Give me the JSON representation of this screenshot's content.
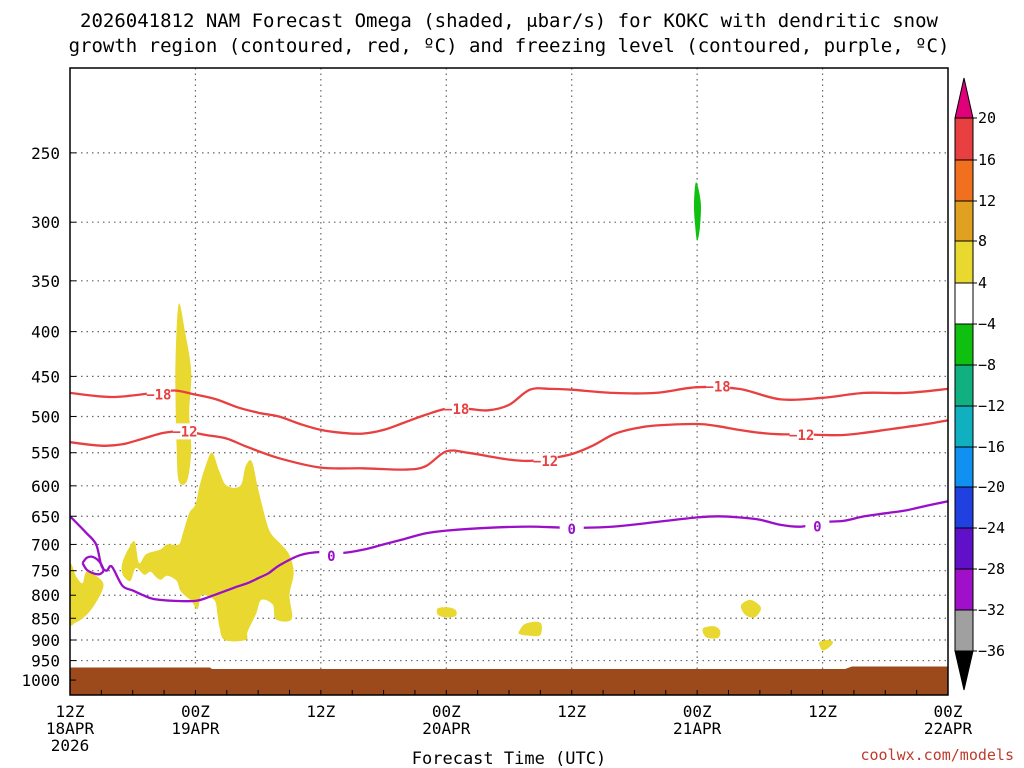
{
  "chart_data": {
    "type": "area",
    "title_line1": "2026041812 NAM Forecast Omega (shaded, μbar/s) for KOKC with dendritic snow",
    "title_line2": "growth region (contoured, red, ºC) and freezing level (contoured, purple, ºC)",
    "xlabel": "Forecast Time (UTC)",
    "credit": "coolwx.com/models",
    "xlim": [
      0,
      84
    ],
    "ylim": [
      200,
      1040
    ],
    "y_scale": "log",
    "y_ticks": [
      250,
      300,
      350,
      400,
      450,
      500,
      550,
      600,
      650,
      700,
      750,
      800,
      850,
      900,
      950,
      1000
    ],
    "x_ticks": [
      {
        "x": 0,
        "line1": "12Z",
        "line2": "18APR",
        "line3": "2026"
      },
      {
        "x": 12,
        "line1": "00Z",
        "line2": "19APR",
        "line3": ""
      },
      {
        "x": 24,
        "line1": "12Z",
        "line2": "",
        "line3": ""
      },
      {
        "x": 36,
        "line1": "00Z",
        "line2": "20APR",
        "line3": ""
      },
      {
        "x": 48,
        "line1": "12Z",
        "line2": "",
        "line3": ""
      },
      {
        "x": 60,
        "line1": "00Z",
        "line2": "21APR",
        "line3": ""
      },
      {
        "x": 72,
        "line1": "12Z",
        "line2": "",
        "line3": ""
      },
      {
        "x": 84,
        "line1": "00Z",
        "line2": "22APR",
        "line3": ""
      }
    ],
    "grid": true,
    "colorbar": {
      "labels": [
        "20",
        "16",
        "12",
        "8",
        "4",
        "−4",
        "−8",
        "−12",
        "−16",
        "−20",
        "−24",
        "−28",
        "−32",
        "−36"
      ],
      "colors": [
        "#e0007a",
        "#e84040",
        "#f07020",
        "#e0a020",
        "#e8d830",
        "#ffffff",
        "#10c010",
        "#10b080",
        "#10b0c0",
        "#1090f0",
        "#2040e0",
        "#6010c8",
        "#a010c8",
        "#a0a0a0",
        "#000000"
      ]
    },
    "series": [
      {
        "name": "−18",
        "kind": "contour",
        "color": "#e84040",
        "label_points": [
          [
            8.5,
            472
          ],
          [
            37,
            490
          ],
          [
            62,
            462
          ]
        ],
        "x": [
          0,
          4,
          8,
          10,
          12,
          14,
          16,
          18,
          20,
          22,
          24,
          26,
          28,
          30,
          32,
          34,
          36,
          38,
          40,
          42,
          44,
          46,
          48,
          52,
          56,
          60,
          64,
          68,
          72,
          76,
          80,
          84
        ],
        "values": [
          470,
          475,
          470,
          467,
          472,
          478,
          488,
          495,
          500,
          510,
          518,
          522,
          523,
          518,
          508,
          498,
          490,
          490,
          492,
          485,
          466,
          465,
          466,
          470,
          470,
          463,
          465,
          478,
          476,
          470,
          470,
          465
        ]
      },
      {
        "name": "−12",
        "kind": "contour",
        "color": "#e84040",
        "label_points": [
          [
            11,
            520
          ],
          [
            45.5,
            562
          ],
          [
            70,
            525
          ]
        ],
        "x": [
          0,
          3,
          5,
          7,
          9,
          11,
          13,
          15,
          17,
          20,
          24,
          28,
          32,
          34,
          36,
          38,
          40,
          42,
          44,
          46,
          48,
          50,
          52,
          54,
          56,
          60,
          62,
          64,
          66,
          68,
          70,
          72,
          74,
          76,
          78,
          80,
          82,
          84
        ],
        "values": [
          535,
          540,
          538,
          530,
          522,
          520,
          525,
          530,
          542,
          558,
          572,
          573,
          575,
          570,
          548,
          550,
          555,
          560,
          562,
          558,
          552,
          540,
          524,
          516,
          512,
          510,
          513,
          518,
          522,
          524,
          524,
          525,
          525,
          522,
          518,
          514,
          510,
          505
        ]
      },
      {
        "name": "0",
        "kind": "contour",
        "color": "#9a10c8",
        "label_points": [
          [
            25,
            722
          ],
          [
            48,
            672
          ],
          [
            71.5,
            668
          ]
        ],
        "x": [
          0,
          1.5,
          2.5,
          3,
          3.5,
          4,
          5,
          6,
          7,
          8,
          10,
          12,
          13,
          14,
          15,
          16,
          17,
          18,
          19,
          20,
          22,
          24,
          26,
          28,
          30,
          32,
          34,
          36,
          40,
          44,
          48,
          52,
          56,
          60,
          62,
          64,
          66,
          68,
          70,
          72,
          74,
          76,
          78,
          80,
          82,
          84
        ],
        "values": [
          650,
          678,
          700,
          740,
          750,
          742,
          780,
          790,
          800,
          808,
          812,
          812,
          806,
          798,
          790,
          782,
          775,
          765,
          755,
          740,
          720,
          714,
          716,
          710,
          700,
          690,
          680,
          675,
          670,
          668,
          670,
          668,
          660,
          652,
          650,
          652,
          656,
          665,
          668,
          660,
          658,
          650,
          645,
          640,
          632,
          625
        ]
      },
      {
        "name": "0 (closed loop)",
        "kind": "contour",
        "color": "#9a10c8",
        "x": [
          1.2,
          1.6,
          2.1,
          2.6,
          3.0,
          3.2,
          2.8,
          2.2,
          1.6,
          1.2
        ],
        "values": [
          735,
          725,
          723,
          728,
          738,
          750,
          757,
          755,
          748,
          735
        ]
      }
    ],
    "shaded_regions": [
      {
        "name": "omega 4-8",
        "color": "#e8d830",
        "points": [
          [
            0,
            740
          ],
          [
            0.6,
            762
          ],
          [
            1.2,
            775
          ],
          [
            1.6,
            752
          ],
          [
            2.8,
            765
          ],
          [
            3.2,
            782
          ],
          [
            2.5,
            815
          ],
          [
            1.6,
            842
          ],
          [
            0.5,
            860
          ],
          [
            0,
            855
          ]
        ]
      },
      {
        "name": "omega 4-8",
        "color": "#e8d830",
        "points": [
          [
            10.4,
            372
          ],
          [
            11.0,
            400
          ],
          [
            11.6,
            445
          ],
          [
            11.4,
            495
          ],
          [
            11.6,
            545
          ],
          [
            11.2,
            592
          ],
          [
            10.4,
            592
          ],
          [
            10.2,
            540
          ],
          [
            10.1,
            480
          ],
          [
            10.1,
            430
          ]
        ]
      },
      {
        "name": "omega 4-8",
        "color": "#e8d830",
        "points": [
          [
            5.0,
            735
          ],
          [
            5.6,
            708
          ],
          [
            6.2,
            695
          ],
          [
            6.6,
            735
          ],
          [
            7.3,
            718
          ],
          [
            8.6,
            710
          ],
          [
            9.3,
            700
          ],
          [
            10.4,
            700
          ],
          [
            10.8,
            680
          ],
          [
            11.4,
            645
          ],
          [
            12.0,
            630
          ],
          [
            12.4,
            600
          ],
          [
            13.0,
            568
          ],
          [
            13.6,
            550
          ],
          [
            14.3,
            578
          ],
          [
            15.0,
            600
          ],
          [
            16.3,
            600
          ],
          [
            16.8,
            570
          ],
          [
            17.4,
            563
          ],
          [
            18.0,
            605
          ],
          [
            18.8,
            660
          ],
          [
            19.3,
            682
          ],
          [
            20.2,
            700
          ],
          [
            21.0,
            720
          ],
          [
            21.4,
            755
          ],
          [
            21.0,
            800
          ],
          [
            21.2,
            852
          ],
          [
            19.7,
            852
          ],
          [
            19.4,
            820
          ],
          [
            18.3,
            810
          ],
          [
            17.8,
            840
          ],
          [
            17.0,
            880
          ],
          [
            16.8,
            900
          ],
          [
            14.8,
            900
          ],
          [
            14.3,
            870
          ],
          [
            14.1,
            840
          ],
          [
            13.8,
            810
          ],
          [
            12.6,
            800
          ],
          [
            12.2,
            830
          ],
          [
            11.6,
            812
          ],
          [
            10.6,
            792
          ],
          [
            10.2,
            770
          ],
          [
            9.3,
            760
          ],
          [
            8.7,
            768
          ],
          [
            8.2,
            762
          ],
          [
            7.7,
            752
          ],
          [
            7.1,
            758
          ],
          [
            6.3,
            745
          ],
          [
            5.8,
            770
          ],
          [
            5.3,
            765
          ],
          [
            5.0,
            755
          ]
        ]
      },
      {
        "name": "omega 4-8",
        "color": "#e8d830",
        "points": [
          [
            35.2,
            828
          ],
          [
            36.2,
            826
          ],
          [
            36.9,
            832
          ],
          [
            36.9,
            845
          ],
          [
            36.0,
            848
          ],
          [
            35.2,
            842
          ]
        ]
      },
      {
        "name": "omega 4-8",
        "color": "#e8d830",
        "points": [
          [
            43.0,
            878
          ],
          [
            43.6,
            862
          ],
          [
            45.0,
            860
          ],
          [
            45.0,
            888
          ],
          [
            44.0,
            890
          ],
          [
            43.0,
            886
          ]
        ]
      },
      {
        "name": "omega 4-8",
        "color": "#e8d830",
        "points": [
          [
            60.6,
            872
          ],
          [
            61.6,
            868
          ],
          [
            62.2,
            878
          ],
          [
            62.0,
            895
          ],
          [
            61.0,
            895
          ],
          [
            60.6,
            885
          ]
        ]
      },
      {
        "name": "omega 4-8",
        "color": "#e8d830",
        "points": [
          [
            64.2,
            822
          ],
          [
            65.0,
            810
          ],
          [
            65.8,
            818
          ],
          [
            66.1,
            830
          ],
          [
            65.5,
            848
          ],
          [
            64.6,
            842
          ]
        ]
      },
      {
        "name": "omega 4-8",
        "color": "#e8d830",
        "points": [
          [
            71.7,
            905
          ],
          [
            72.4,
            900
          ],
          [
            73.0,
            905
          ],
          [
            72.6,
            918
          ],
          [
            72.0,
            925
          ],
          [
            71.7,
            912
          ]
        ]
      },
      {
        "name": "omega -4 to -8",
        "color": "#10c010",
        "points": [
          [
            59.9,
            270
          ],
          [
            60.35,
            285
          ],
          [
            60.25,
            305
          ],
          [
            60.0,
            315
          ],
          [
            59.8,
            302
          ],
          [
            59.7,
            285
          ]
        ]
      }
    ],
    "ground": {
      "color": "#9c4a1c",
      "top": 965
    }
  }
}
